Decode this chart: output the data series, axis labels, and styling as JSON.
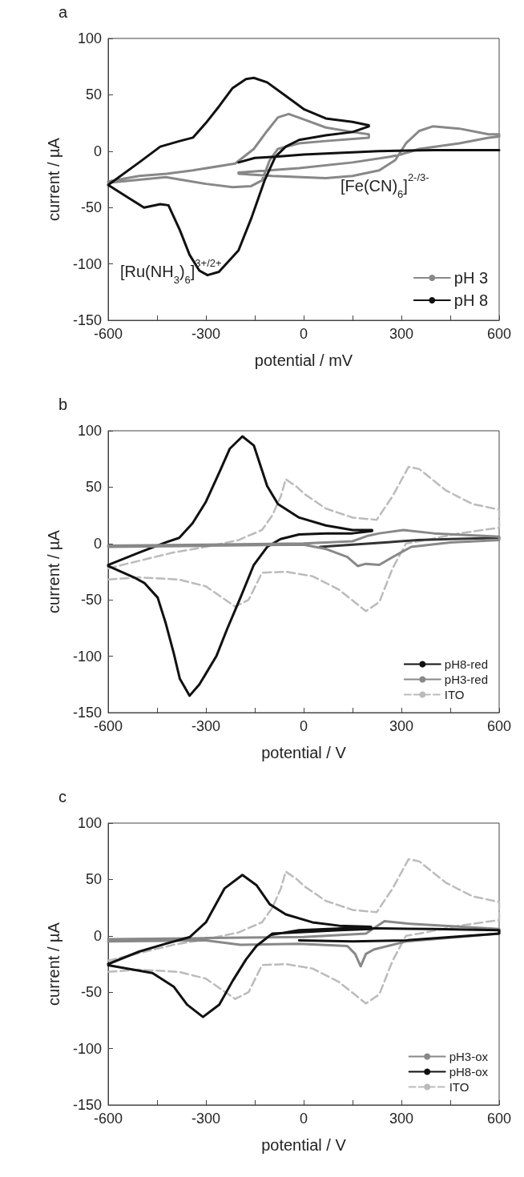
{
  "chart_data": [
    {
      "type": "line",
      "title": "a",
      "xlabel": "potential / mV",
      "ylabel": "current / µA",
      "annotations": [
        "[Ru(NH$_{3}$)$_{6}$]$^{3+/2+}$",
        "[Fe(CN)$_{6}$]$^{2-/3-}$"
      ],
      "xlim": [
        -600,
        600
      ],
      "xticks": [
        -600,
        {
          "value": -450,
          "label": null
        },
        -300,
        {
          "value": -150,
          "label": null
        },
        0,
        {
          "value": 150,
          "label": null
        },
        300,
        {
          "value": 450,
          "label": null
        },
        600
      ],
      "ylim": [
        -150,
        100
      ],
      "yticks": [
        -150,
        -100,
        -50,
        0,
        50,
        100
      ],
      "legend": "bottom right",
      "series": [
        {
          "name": "pH 3",
          "color": "#888888",
          "x": [
            -600,
            -505,
            -420,
            -340,
            -210,
            -153,
            -112,
            -79,
            -46,
            2,
            68,
            150,
            200,
            200,
            68,
            -14,
            -79,
            -104,
            -128,
            -161,
            -218,
            -300,
            -423,
            -600,
            null,
            -200,
            -96,
            68,
            150,
            232,
            281,
            314,
            355,
            396,
            478,
            568,
            600,
            600,
            568,
            478,
            355,
            298,
            265,
            150,
            -14,
            -200
          ],
          "values": [
            -27,
            -22,
            -20,
            -17,
            -11,
            2,
            18,
            30,
            33,
            28,
            21,
            17,
            15,
            12,
            9,
            7,
            2,
            -8,
            -26,
            -31,
            -32,
            -29,
            -23,
            -28,
            null,
            -20,
            -22,
            -24,
            -22,
            -17,
            -8,
            7,
            18,
            22,
            20,
            15,
            15,
            13,
            12,
            7,
            2,
            -3,
            -5,
            -10,
            -15,
            -19
          ]
        },
        {
          "name": "pH 8",
          "color": "#111111",
          "x": [
            600,
            400,
            230,
            0,
            -87,
            -120,
            -160,
            -200,
            -260,
            -295,
            -320,
            -350,
            -380,
            -415,
            -440,
            -490,
            -540,
            -600,
            -505,
            -440,
            -380,
            -340,
            -300,
            -259,
            -218,
            -177,
            -153,
            -112,
            -55,
            2,
            68,
            150,
            200,
            200,
            150,
            68,
            -14,
            -55,
            -87,
            -150,
            -200
          ],
          "values": [
            1,
            1,
            0,
            -3,
            -5,
            -26,
            -59,
            -88,
            -107,
            -110,
            -106,
            -92,
            -70,
            -48,
            -47,
            -50,
            -41,
            -30,
            -10,
            4,
            9,
            12,
            25,
            40,
            56,
            64,
            65,
            61,
            49,
            37,
            29,
            26,
            23,
            22,
            17,
            14,
            10,
            4,
            -5,
            -6,
            -10
          ]
        }
      ]
    },
    {
      "type": "line",
      "title": "b",
      "xlabel": "potential / V",
      "ylabel": "current / µA",
      "xlim": [
        -600,
        600
      ],
      "xticks": [
        -600,
        {
          "value": -450,
          "label": null
        },
        -300,
        {
          "value": -150,
          "label": null
        },
        0,
        {
          "value": 150,
          "label": null
        },
        300,
        {
          "value": 450,
          "label": null
        },
        600
      ],
      "ylim": [
        -150,
        100
      ],
      "yticks": [
        -150,
        -100,
        -50,
        0,
        50,
        100
      ],
      "legend": "bottom right",
      "series": [
        {
          "name": "pH8-red",
          "color": "#111111",
          "x": [
            -600,
            -521,
            -489,
            -448,
            -423,
            -399,
            -380,
            -350,
            -320,
            -268,
            -235,
            -194,
            -153,
            -112,
            -71,
            -14,
            68,
            150,
            210,
            210,
            150,
            68,
            -14,
            -79,
            -112,
            -153,
            -188,
            -227,
            -259,
            -300,
            -341,
            -382,
            -423,
            -505,
            -600
          ],
          "values": [
            -20,
            -30,
            -35,
            -48,
            -71,
            -97,
            -120,
            -135,
            -125,
            -100,
            -76,
            -48,
            -19,
            -3,
            4,
            8,
            9,
            9,
            11,
            12,
            12,
            16,
            23,
            35,
            51,
            87,
            95,
            84,
            63,
            37,
            18,
            5,
            1,
            -8,
            -19
          ]
        },
        {
          "color": "#333333",
          "x": [
            50,
            150,
            250,
            350,
            450,
            600
          ],
          "values": [
            -3,
            -1,
            1,
            3,
            4,
            5
          ]
        },
        {
          "name": "pH3-red",
          "color": "#888888",
          "x": [
            -600,
            -300,
            0,
            70,
            134,
            166,
            191,
            232,
            273,
            330,
            450,
            600,
            600,
            400,
            306,
            232,
            199,
            150,
            0,
            -300,
            -600
          ],
          "values": [
            -3,
            -2,
            -1,
            -5,
            -12,
            -20,
            -18,
            -19,
            -12,
            -3,
            1,
            3,
            6,
            9,
            12,
            9,
            7,
            2,
            0,
            -1,
            -2
          ]
        },
        {
          "name": "ITO",
          "color": "#bbbbbb",
          "line_style": "dashed",
          "x": [
            -600,
            -500,
            -400,
            -300,
            -200,
            -128,
            -96,
            -70,
            -55,
            -20,
            2,
            68,
            150,
            224,
            273,
            322,
            355,
            437,
            519,
            600,
            600,
            478,
            355,
            314,
            273,
            232,
            191,
            109,
            27,
            -55,
            -128,
            -169,
            -210,
            -300,
            -382,
            -505,
            -600
          ],
          "values": [
            -22,
            -15,
            -8,
            -3,
            3,
            12,
            25,
            42,
            57,
            50,
            44,
            31,
            23,
            21,
            42,
            68,
            66,
            47,
            35,
            30,
            14,
            9,
            2,
            0,
            -22,
            -52,
            -60,
            -41,
            -29,
            -25,
            -26,
            -50,
            -56,
            -38,
            -32,
            -30,
            -32
          ]
        }
      ]
    },
    {
      "type": "line",
      "title": "c",
      "xlabel": "potential / V",
      "ylabel": "current / µA",
      "xlim": [
        -600,
        600
      ],
      "xticks": [
        -600,
        {
          "value": -450,
          "label": null
        },
        -300,
        {
          "value": -150,
          "label": null
        },
        0,
        {
          "value": 150,
          "label": null
        },
        300,
        {
          "value": 450,
          "label": null
        },
        600
      ],
      "ylim": [
        -150,
        100
      ],
      "yticks": [
        -150,
        -100,
        -50,
        0,
        50,
        100
      ],
      "legend": "bottom right",
      "series": [
        {
          "name": "pH3-ox",
          "color": "#888888",
          "x": [
            -600,
            -300,
            -194,
            -14,
            134,
            158,
            175,
            191,
            216,
            314,
            600,
            600,
            314,
            248,
            191,
            0,
            -300,
            -600
          ],
          "values": [
            -5,
            -4,
            -8,
            -7,
            -9,
            -16,
            -27,
            -16,
            -12,
            -5,
            2,
            6,
            11,
            13,
            2,
            -1,
            -2,
            -3
          ]
        },
        {
          "name": "pH8-ox",
          "color": "#111111",
          "x": [
            -600,
            -505,
            -423,
            -349,
            -300,
            -243,
            -188,
            -145,
            -104,
            -55,
            27,
            109,
            207,
            207,
            109,
            -96,
            -145,
            -177,
            -218,
            -259,
            -309,
            -358,
            -399,
            -464,
            -600,
            null,
            -96,
            -14,
            150,
            396,
            600,
            600,
            314,
            150,
            -14
          ],
          "values": [
            -25,
            -14,
            -7,
            -1,
            12,
            42,
            54,
            45,
            28,
            19,
            12,
            9,
            8,
            6,
            5,
            2,
            -9,
            -21,
            -40,
            -61,
            -72,
            -61,
            -45,
            -33,
            -26,
            null,
            1,
            5,
            7,
            6,
            5,
            2,
            -4,
            -5,
            -4
          ]
        },
        {
          "name": "ITO",
          "color": "#bbbbbb",
          "line_style": "dashed",
          "x": [
            -600,
            -500,
            -400,
            -300,
            -200,
            -128,
            -96,
            -70,
            -55,
            -20,
            2,
            68,
            150,
            224,
            273,
            322,
            355,
            437,
            519,
            600,
            600,
            478,
            355,
            314,
            273,
            232,
            191,
            109,
            27,
            -55,
            -128,
            -169,
            -210,
            -300,
            -382,
            -505,
            -600
          ],
          "values": [
            -22,
            -15,
            -8,
            -3,
            3,
            12,
            25,
            42,
            57,
            50,
            44,
            31,
            23,
            21,
            42,
            68,
            66,
            47,
            35,
            30,
            14,
            9,
            2,
            0,
            -22,
            -52,
            -60,
            -41,
            -29,
            -25,
            -26,
            -50,
            -56,
            -38,
            -32,
            -30,
            -32
          ]
        }
      ]
    }
  ]
}
